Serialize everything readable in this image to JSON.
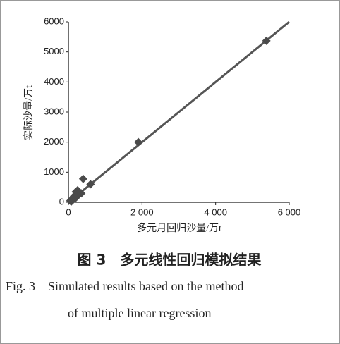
{
  "chart_data": {
    "type": "scatter",
    "x_label": "多元月回归沙量/万t",
    "y_label": "实际沙量/万t",
    "x": [
      5380,
      1900,
      400,
      600,
      200,
      250,
      150,
      300,
      100,
      50,
      200,
      250,
      350,
      80,
      120
    ],
    "values": [
      5370,
      2000,
      780,
      600,
      350,
      400,
      200,
      300,
      100,
      50,
      150,
      250,
      300,
      30,
      80
    ],
    "color": "#4a4a4a",
    "fit_line": {
      "x": [
        0,
        6000
      ],
      "values": [
        0,
        6000
      ],
      "color": "#555555"
    },
    "xlim": [
      0,
      6000
    ],
    "ylim": [
      0,
      6000
    ],
    "xticks": [
      0,
      {
        "value": 2000,
        "label": "2 000"
      },
      {
        "value": 4000,
        "label": "4 000"
      },
      {
        "value": 6000,
        "label": "6 000"
      }
    ],
    "yticks": [
      0,
      1000,
      2000,
      3000,
      4000,
      5000,
      6000
    ]
  },
  "caption_zh": "图 3　多元线性回归模拟结果",
  "caption_en": [
    "Fig. 3　Simulated results based on the method",
    "of multiple linear regression"
  ]
}
